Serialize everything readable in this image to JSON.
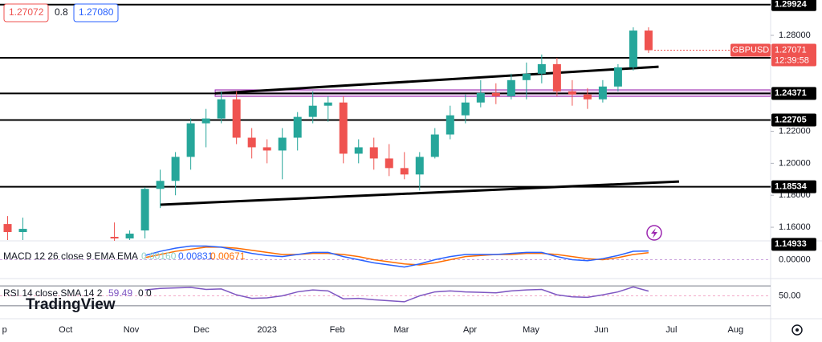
{
  "chart_data": {
    "type": "candlestick",
    "symbol": "GBPUSD",
    "countdown": "12:39:58",
    "current_price": 1.27071,
    "legend_texts": [
      "1.27072",
      "0.8",
      "1.27080"
    ],
    "up_color": "#26a69a",
    "down_color": "#ef5350",
    "x": [
      0,
      1,
      7,
      8,
      9,
      10,
      11,
      12,
      13,
      14,
      15,
      16,
      17,
      18,
      19,
      20,
      21,
      22,
      23,
      24,
      25,
      26,
      27,
      28,
      29,
      30,
      31,
      32,
      33,
      34,
      35,
      36,
      37,
      38,
      39,
      40,
      41,
      42
    ],
    "open": [
      1.162,
      1.157,
      1.154,
      1.153,
      1.158,
      1.184,
      1.189,
      1.204,
      1.225,
      1.228,
      1.24,
      1.216,
      1.21,
      1.208,
      1.216,
      1.229,
      1.236,
      1.238,
      1.206,
      1.21,
      1.203,
      1.197,
      1.193,
      1.204,
      1.218,
      1.23,
      1.238,
      1.244,
      1.242,
      1.252,
      1.256,
      1.262,
      1.245,
      1.243,
      1.24,
      1.248,
      1.26,
      1.283
    ],
    "high": [
      1.167,
      1.166,
      1.163,
      1.158,
      1.185,
      1.196,
      1.207,
      1.228,
      1.234,
      1.245,
      1.245,
      1.222,
      1.215,
      1.222,
      1.232,
      1.245,
      1.242,
      1.242,
      1.215,
      1.216,
      1.212,
      1.207,
      1.207,
      1.222,
      1.236,
      1.243,
      1.252,
      1.25,
      1.256,
      1.263,
      1.268,
      1.266,
      1.252,
      1.247,
      1.252,
      1.262,
      1.285,
      1.285
    ],
    "low": [
      1.152,
      1.152,
      1.151,
      1.152,
      1.153,
      1.172,
      1.18,
      1.196,
      1.21,
      1.225,
      1.212,
      1.203,
      1.2,
      1.19,
      1.208,
      1.225,
      1.226,
      1.2,
      1.2,
      1.196,
      1.192,
      1.19,
      1.183,
      1.203,
      1.215,
      1.225,
      1.235,
      1.237,
      1.24,
      1.24,
      1.25,
      1.242,
      1.236,
      1.234,
      1.238,
      1.245,
      1.258,
      1.269
    ],
    "close": [
      1.157,
      1.159,
      1.153,
      1.156,
      1.184,
      1.189,
      1.204,
      1.225,
      1.228,
      1.24,
      1.216,
      1.21,
      1.208,
      1.216,
      1.229,
      1.236,
      1.238,
      1.206,
      1.21,
      1.203,
      1.197,
      1.193,
      1.204,
      1.218,
      1.23,
      1.238,
      1.244,
      1.242,
      1.252,
      1.256,
      1.262,
      1.245,
      1.243,
      1.24,
      1.248,
      1.26,
      1.283,
      1.2707
    ],
    "xlim": [
      -0.5,
      50
    ],
    "ylim": [
      1.1515,
      1.3021
    ],
    "xticks": [
      {
        "value": -0.2,
        "label": "p"
      },
      {
        "value": 3.8,
        "label": "Oct"
      },
      {
        "value": 8.1,
        "label": "Nov"
      },
      {
        "value": 12.7,
        "label": "Dec"
      },
      {
        "value": 17.0,
        "label": "2023"
      },
      {
        "value": 21.6,
        "label": "Feb"
      },
      {
        "value": 25.8,
        "label": "Mar"
      },
      {
        "value": 30.3,
        "label": "Apr"
      },
      {
        "value": 34.3,
        "label": "May"
      },
      {
        "value": 38.9,
        "label": "Jun"
      },
      {
        "value": 43.5,
        "label": "Jul"
      },
      {
        "value": 47.7,
        "label": "Aug"
      }
    ],
    "yticks": [
      {
        "value": 1.28,
        "label": "1.28000"
      },
      {
        "value": 1.22,
        "label": "1.22000"
      },
      {
        "value": 1.2,
        "label": "1.20000"
      },
      {
        "value": 1.18,
        "label": "1.18000"
      },
      {
        "value": 1.16,
        "label": "1.16000"
      }
    ],
    "levels": [
      1.29924,
      1.26596,
      1.24371,
      1.22705,
      1.18534,
      1.14933
    ],
    "trendlines": [
      {
        "x": [
          13.6,
          42.66
        ],
        "y": [
          1.24371,
          1.2604
        ]
      },
      {
        "x": [
          10.0,
          44.0
        ],
        "y": [
          1.1741,
          1.1886
        ]
      }
    ],
    "zone": {
      "x": 13.6,
      "y": [
        1.2418,
        1.2459
      ]
    },
    "macd": {
      "label": "MACD 12 26 close 9 EMA EMA",
      "histogram_label": "0.00160",
      "x": [
        9,
        10,
        11,
        12,
        13,
        14,
        15,
        16,
        17,
        18,
        19,
        20,
        21,
        22,
        23,
        24,
        25,
        26,
        27,
        28,
        29,
        30,
        31,
        32,
        33,
        34,
        35,
        36,
        37,
        38,
        39,
        40,
        41,
        42
      ],
      "macd": [
        0.004,
        0.008,
        0.011,
        0.013,
        0.013,
        0.012,
        0.009,
        0.006,
        0.004,
        0.003,
        0.005,
        0.007,
        0.007,
        0.003,
        0,
        -0.003,
        -0.005,
        -0.007,
        -0.004,
        0,
        0.003,
        0.005,
        0.005,
        0.005,
        0.006,
        0.007,
        0.007,
        0.003,
        0,
        -0.001,
        0.001,
        0.004,
        0.008,
        0.00831
      ],
      "signal": [
        0.002,
        0.005,
        0.008,
        0.01,
        0.012,
        0.012,
        0.011,
        0.009,
        0.007,
        0.005,
        0.005,
        0.006,
        0.006,
        0.005,
        0.003,
        0,
        -0.002,
        -0.004,
        -0.005,
        -0.003,
        0,
        0.003,
        0.004,
        0.005,
        0.005,
        0.006,
        0.006,
        0.005,
        0.003,
        0.001,
        0,
        0.002,
        0.005,
        0.00671
      ],
      "ylim": [
        -0.018,
        0.018
      ],
      "yticks": [
        {
          "value": 0,
          "label": "0.00000"
        }
      ]
    },
    "rsi": {
      "label": "RSI 14 close SMA 14 2",
      "extra": "0 0",
      "x": [
        9,
        10,
        11,
        12,
        13,
        14,
        15,
        16,
        17,
        18,
        19,
        20,
        21,
        22,
        23,
        24,
        25,
        26,
        27,
        28,
        29,
        30,
        31,
        32,
        33,
        34,
        35,
        36,
        37,
        38,
        39,
        40,
        41,
        42
      ],
      "values": [
        62,
        65,
        66,
        67,
        63,
        64,
        52,
        45,
        46,
        50,
        58,
        62,
        60,
        44,
        45,
        42,
        40,
        38,
        50,
        58,
        60,
        58,
        57,
        56,
        60,
        62,
        63,
        52,
        48,
        47,
        52,
        58,
        68,
        59.49
      ],
      "ylim": [
        20,
        80
      ],
      "bands": [
        70,
        30
      ],
      "yticks": [
        {
          "value": 50,
          "label": "50.00"
        }
      ]
    },
    "watermark": "TradingView"
  }
}
